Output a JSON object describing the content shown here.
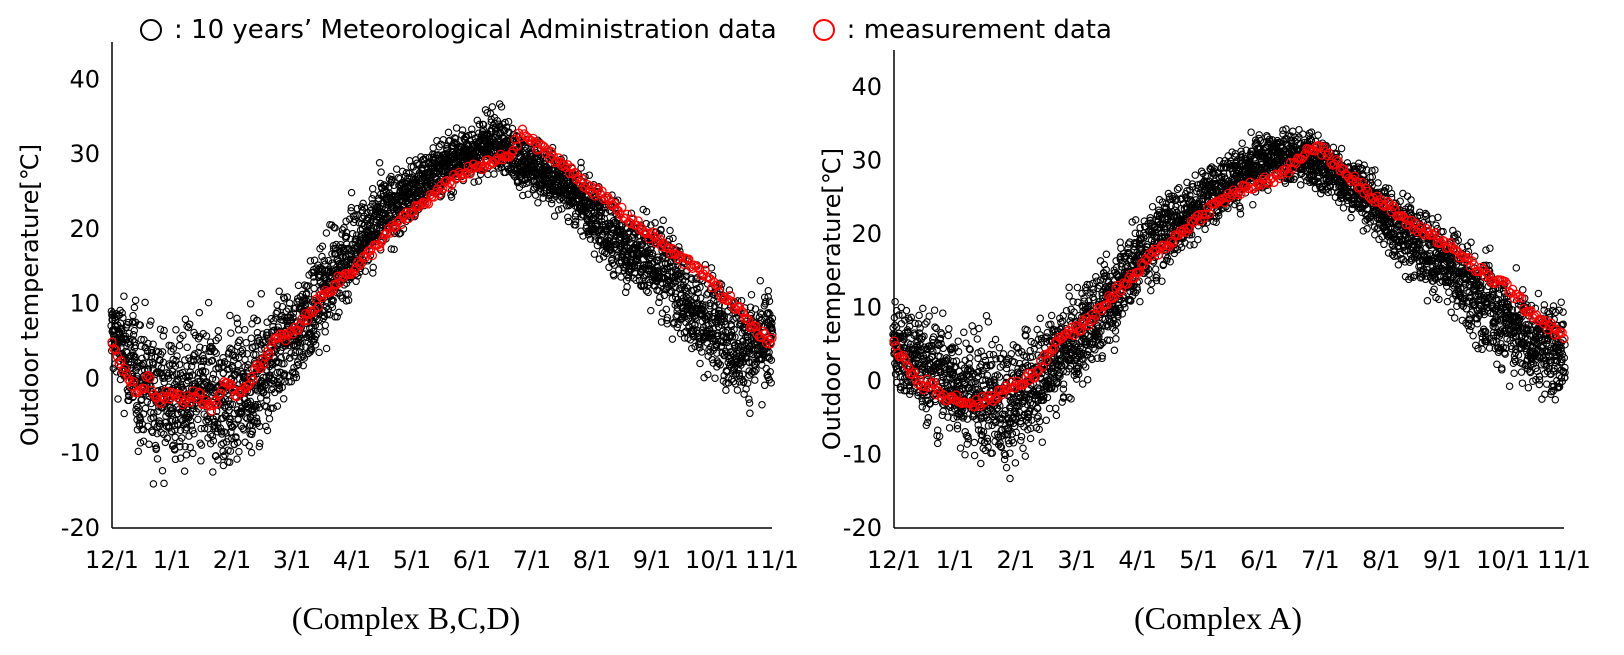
{
  "legend": {
    "historical_label": ": 10 years’ Meteorological Administration data",
    "measurement_label": ": measurement data",
    "historical_color": "#000000",
    "measurement_color": "#ff0000"
  },
  "chart_data": [
    {
      "type": "scatter",
      "caption": "(Complex B,C,D)",
      "ylabel": "Outdoor temperature[℃]",
      "xlabel": "",
      "ylim": [
        -20,
        45
      ],
      "yticks": [
        -20,
        -10,
        0,
        10,
        20,
        30,
        40
      ],
      "categories": [
        "12/1",
        "1/1",
        "2/1",
        "3/1",
        "4/1",
        "5/1",
        "6/1",
        "7/1",
        "8/1",
        "9/1",
        "10/1",
        "11/1"
      ],
      "xlim": [
        0,
        365
      ],
      "series": [
        {
          "name": "10 years' Meteorological Administration data",
          "color": "#000000",
          "x": [
            0,
            15,
            31,
            46,
            62,
            77,
            90,
            105,
            120,
            135,
            151,
            166,
            181,
            196,
            212,
            227,
            243,
            258,
            273,
            288,
            304,
            319,
            334,
            349,
            364
          ],
          "y": [
            6,
            0,
            -3,
            -2,
            -3,
            -1,
            3,
            7,
            13,
            18,
            22,
            25,
            28,
            30,
            32,
            29,
            27,
            24,
            20,
            17,
            15,
            10,
            7,
            4,
            5
          ],
          "spread": [
            4,
            7,
            7,
            7,
            8,
            6,
            6,
            5,
            5,
            4,
            4,
            3,
            3,
            3,
            3,
            3,
            3,
            3,
            4,
            4,
            5,
            5,
            5,
            5,
            5
          ],
          "points_per_day": 10
        },
        {
          "name": "measurement data",
          "color": "#ff0000",
          "x": [
            0,
            5,
            10,
            15,
            20,
            25,
            31,
            40,
            46,
            55,
            62,
            70,
            77,
            85,
            90,
            100,
            110,
            120,
            130,
            140,
            151,
            160,
            170,
            181,
            190,
            200,
            212,
            220,
            227,
            235,
            243,
            252,
            262,
            273,
            283,
            293,
            304,
            314,
            324,
            334,
            344,
            354,
            364
          ],
          "y": [
            5,
            2,
            0,
            -2,
            0,
            -3,
            -2,
            -3,
            -2,
            -4,
            -1,
            -2,
            0,
            3,
            5,
            6,
            9,
            12,
            14,
            16,
            19,
            21,
            23,
            25,
            27,
            28,
            29,
            30,
            33,
            31,
            30,
            28,
            26,
            24,
            22,
            20,
            18,
            16,
            15,
            12,
            10,
            7,
            5
          ]
        }
      ]
    },
    {
      "type": "scatter",
      "caption": "(Complex A)",
      "ylabel": "Outdoor temperature[℃]",
      "xlabel": "",
      "ylim": [
        -20,
        45
      ],
      "yticks": [
        -20,
        -10,
        0,
        10,
        20,
        30,
        40
      ],
      "categories": [
        "12/1",
        "1/1",
        "2/1",
        "3/1",
        "4/1",
        "5/1",
        "6/1",
        "7/1",
        "8/1",
        "9/1",
        "10/1",
        "11/1"
      ],
      "xlim": [
        0,
        365
      ],
      "series": [
        {
          "name": "10 years' Meteorological Administration data",
          "color": "#000000",
          "x": [
            0,
            15,
            31,
            46,
            62,
            77,
            90,
            105,
            120,
            135,
            151,
            166,
            181,
            196,
            212,
            227,
            243,
            258,
            273,
            288,
            304,
            319,
            334,
            349,
            364
          ],
          "y": [
            5,
            2,
            0,
            -2,
            -3,
            0,
            3,
            7,
            12,
            17,
            21,
            24,
            27,
            29,
            31,
            30,
            28,
            25,
            21,
            18,
            15,
            11,
            8,
            5,
            4
          ],
          "spread": [
            4,
            6,
            6,
            6,
            7,
            6,
            5,
            5,
            5,
            4,
            4,
            3,
            3,
            3,
            3,
            3,
            3,
            3,
            4,
            4,
            4,
            5,
            5,
            5,
            5
          ],
          "points_per_day": 10
        },
        {
          "name": "measurement data",
          "color": "#ff0000",
          "x": [
            0,
            5,
            10,
            15,
            20,
            25,
            31,
            40,
            46,
            55,
            62,
            70,
            77,
            85,
            90,
            100,
            110,
            120,
            130,
            140,
            151,
            160,
            170,
            181,
            190,
            200,
            212,
            220,
            227,
            235,
            243,
            252,
            262,
            273,
            283,
            293,
            304,
            314,
            324,
            334,
            344,
            354,
            364
          ],
          "y": [
            5,
            3,
            1,
            -1,
            0,
            -2,
            -2,
            -3,
            -3,
            -2,
            -1,
            0,
            1,
            4,
            6,
            7,
            9,
            12,
            14,
            17,
            19,
            21,
            23,
            25,
            26,
            27,
            28,
            30,
            32,
            31,
            29,
            27,
            25,
            23,
            21,
            20,
            18,
            16,
            14,
            13,
            10,
            8,
            6
          ]
        }
      ]
    }
  ]
}
